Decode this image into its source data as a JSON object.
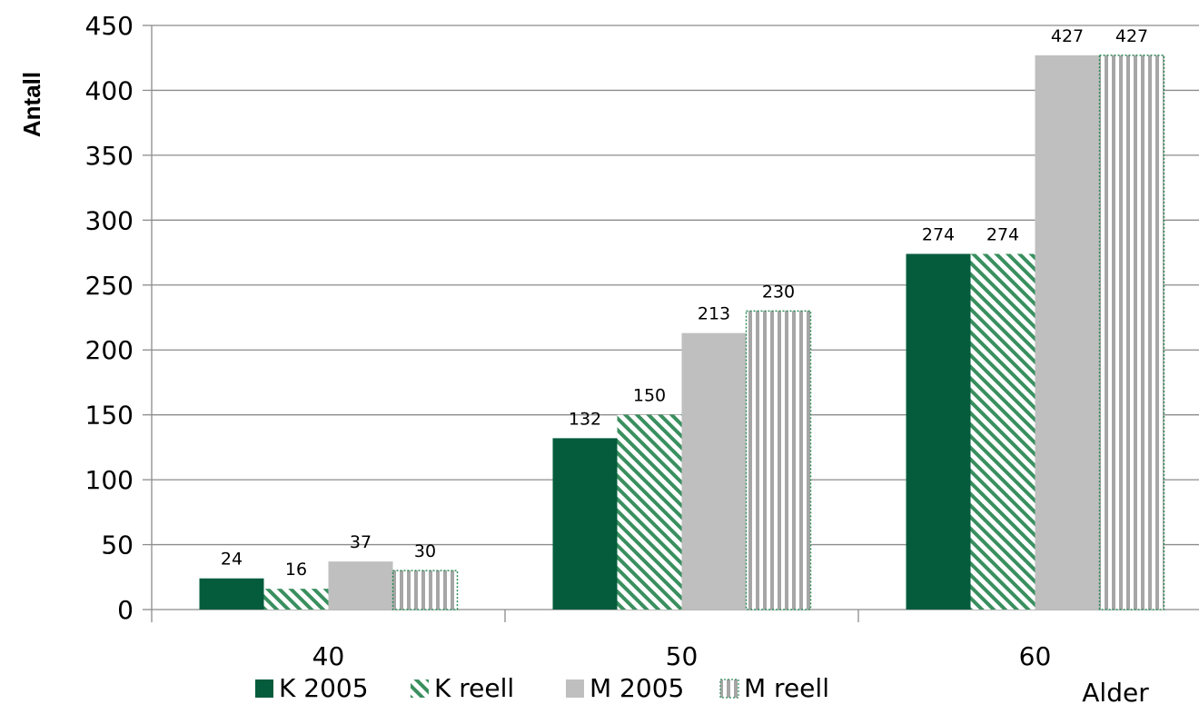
{
  "chart_data": {
    "type": "bar",
    "categories": [
      "40",
      "50",
      "60"
    ],
    "series": [
      {
        "name": "K 2005",
        "values": [
          24,
          132,
          274
        ],
        "color": "#045C3D",
        "pattern": "solid"
      },
      {
        "name": "K reell",
        "values": [
          16,
          150,
          274
        ],
        "color": "#2E8B57",
        "pattern": "diagonal-hatch"
      },
      {
        "name": "M 2005",
        "values": [
          37,
          213,
          427
        ],
        "color": "#BFBFBF",
        "pattern": "solid"
      },
      {
        "name": "M reell",
        "values": [
          30,
          230,
          427
        ],
        "color": "#A6A6A6",
        "pattern": "vertical-stripes"
      }
    ],
    "data_labels": [
      [
        "24",
        "132",
        "274"
      ],
      [
        "16",
        "150",
        "274"
      ],
      [
        "37",
        "213",
        "427"
      ],
      [
        "30",
        "230",
        "427"
      ]
    ],
    "yticks": [
      "0",
      "50",
      "100",
      "150",
      "200",
      "250",
      "300",
      "350",
      "400",
      "450"
    ],
    "ylim": [
      0,
      450
    ],
    "ylabel": "Antall",
    "xlabel": "Alder",
    "grid": true,
    "legend_position": "bottom"
  }
}
